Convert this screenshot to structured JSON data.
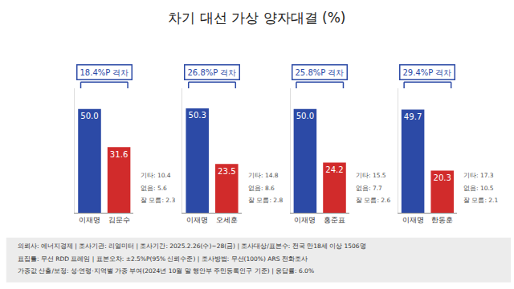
{
  "title": "차기 대선 가상 양자대결 (%)",
  "chart_data": [
    {
      "type": "bar",
      "categories": [
        "이재명",
        "김문수"
      ],
      "values": [
        50.0,
        31.6
      ],
      "value_labels": [
        "50.0",
        "31.6"
      ],
      "colors": [
        "#2c4aa6",
        "#d12b2b"
      ],
      "data_labels": true,
      "tick_labels": "x",
      "ylim": [
        0,
        60
      ],
      "annotations": [
        "18.4%P 격차"
      ],
      "notes": [
        "기타: 10.4",
        "없음: 5.6",
        "잘 모름: 2.3"
      ]
    },
    {
      "type": "bar",
      "categories": [
        "이재명",
        "오세훈"
      ],
      "values": [
        50.3,
        23.5
      ],
      "value_labels": [
        "50.3",
        "23.5"
      ],
      "colors": [
        "#2c4aa6",
        "#d12b2b"
      ],
      "data_labels": true,
      "tick_labels": "x",
      "ylim": [
        0,
        60
      ],
      "annotations": [
        "26.8%P 격차"
      ],
      "notes": [
        "기타: 14.8",
        "없음: 8.6",
        "잘 모름: 2.8"
      ]
    },
    {
      "type": "bar",
      "categories": [
        "이재명",
        "홍준표"
      ],
      "values": [
        50.0,
        24.2
      ],
      "value_labels": [
        "50.0",
        "24.2"
      ],
      "colors": [
        "#2c4aa6",
        "#d12b2b"
      ],
      "data_labels": true,
      "tick_labels": "x",
      "ylim": [
        0,
        60
      ],
      "annotations": [
        "25.8%P 격차"
      ],
      "notes": [
        "기타: 15.5",
        "없음: 7.7",
        "잘 모름: 2.6"
      ]
    },
    {
      "type": "bar",
      "categories": [
        "이재명",
        "한동훈"
      ],
      "values": [
        49.7,
        20.3
      ],
      "value_labels": [
        "49.7",
        "20.3"
      ],
      "colors": [
        "#2c4aa6",
        "#d12b2b"
      ],
      "data_labels": true,
      "tick_labels": "x",
      "ylim": [
        0,
        60
      ],
      "annotations": [
        "29.4%P 격차"
      ],
      "notes": [
        "기타: 17.3",
        "없음: 10.5",
        "잘 모름: 2.1"
      ]
    }
  ],
  "footer": [
    "의뢰사: 에너지경제 | 조사기관: 리얼미터 | 조사기간: 2025.2.26(수)~28(금) | 조사대상/표본수: 전국 만18세 이상 1506명",
    "표집틀: 무선 RDD 프레임 | 표본오차: ±2.5%P(95% 신뢰수준) | 조사방법: 무선(100%) ARS 전화조사",
    "가중값 산출/보정: 성·연령·지역별 가중 부여(2024년 10월 말 행안부 주민등록인구 기준) | 응답률: 6.0%"
  ]
}
